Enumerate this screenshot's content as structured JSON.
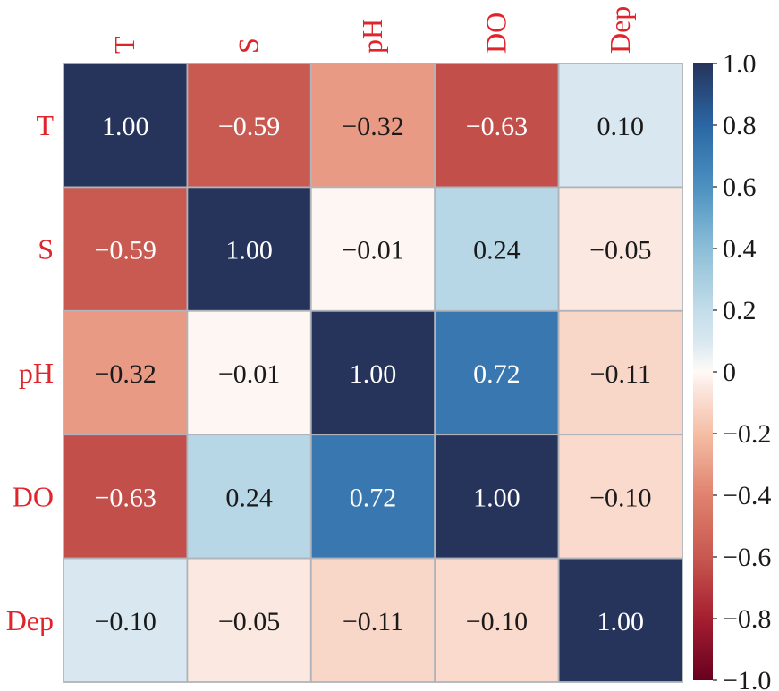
{
  "chart_data": {
    "type": "heatmap",
    "title": "",
    "xlabel": "",
    "ylabel": "",
    "x_labels": [
      "T",
      "S",
      "pH",
      "DO",
      "Dep"
    ],
    "y_labels": [
      "T",
      "S",
      "pH",
      "DO",
      "Dep"
    ],
    "label_color": "#e0242c",
    "matrix": [
      [
        1.0,
        -0.59,
        -0.32,
        -0.63,
        0.1
      ],
      [
        -0.59,
        1.0,
        -0.01,
        0.24,
        -0.05
      ],
      [
        -0.32,
        -0.01,
        1.0,
        0.72,
        -0.11
      ],
      [
        -0.63,
        0.24,
        0.72,
        1.0,
        -0.1
      ],
      [
        -0.1,
        -0.05,
        -0.11,
        -0.1,
        1.0
      ]
    ],
    "cell_labels": [
      [
        "1.00",
        "−0.59",
        "−0.32",
        "−0.63",
        "0.10"
      ],
      [
        "−0.59",
        "1.00",
        "−0.01",
        "0.24",
        "−0.05"
      ],
      [
        "−0.32",
        "−0.01",
        "1.00",
        "0.72",
        "−0.11"
      ],
      [
        "−0.63",
        "0.24",
        "0.72",
        "1.00",
        "−0.10"
      ],
      [
        "−0.10",
        "−0.05",
        "−0.11",
        "−0.10",
        "1.00"
      ]
    ],
    "cell_color_overrides": [
      {
        "row": 4,
        "col": 0,
        "color": "#d8e7f0"
      }
    ],
    "colormap": "RdBu",
    "colorbar": {
      "range": [
        -1.0,
        1.0
      ],
      "ticks": [
        1.0,
        0.8,
        0.6,
        0.4,
        0.2,
        0,
        -0.2,
        -0.4,
        -0.6,
        -0.8,
        -1.0
      ],
      "tick_labels": [
        "1.0",
        "0.8",
        "0.6",
        "0.4",
        "0.2",
        "0",
        "−0.2",
        "−0.4",
        "−0.6",
        "−0.8",
        "−1.0"
      ],
      "placement": "right"
    },
    "x_label_placement": "top",
    "x_label_rotation": "vertical",
    "grid_line_color": "#b0b4ba"
  }
}
